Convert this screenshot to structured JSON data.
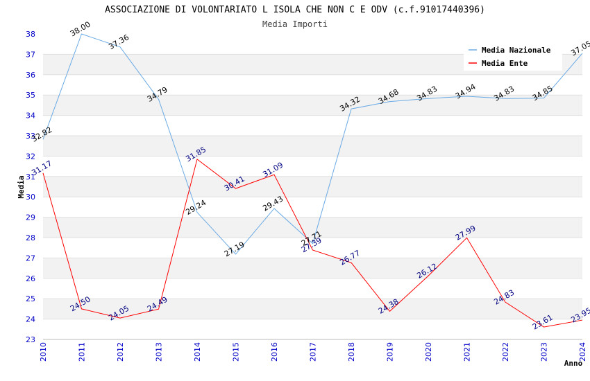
{
  "chart_data": {
    "type": "line",
    "title": "ASSOCIAZIONE DI VOLONTARIATO L ISOLA CHE NON C E ODV (c.f.91017440396)",
    "subtitle": "Media Importi",
    "xlabel": "Anno",
    "ylabel": "Media",
    "ylim": [
      23,
      38
    ],
    "yticks": [
      23,
      24,
      25,
      26,
      27,
      28,
      29,
      30,
      31,
      32,
      33,
      34,
      35,
      36,
      37,
      38
    ],
    "categories": [
      "2010",
      "2011",
      "2012",
      "2013",
      "2014",
      "2015",
      "2016",
      "2017",
      "2018",
      "2019",
      "2020",
      "2021",
      "2022",
      "2023",
      "2024"
    ],
    "grid": "horizontal alternating bands",
    "legend": "top-right",
    "series": [
      {
        "name": "Media Nazionale",
        "color": "#6aaae4",
        "label_color": "#000000",
        "values": [
          32.82,
          38.0,
          37.36,
          34.79,
          29.24,
          27.19,
          29.43,
          27.71,
          34.32,
          34.68,
          34.83,
          34.94,
          34.83,
          34.85,
          37.05
        ],
        "labels": [
          "32.82",
          "38.00",
          "37.36",
          "34.79",
          "29.24",
          "27.19",
          "29.43",
          "27.71",
          "34.32",
          "34.68",
          "34.83",
          "34.94",
          "34.83",
          "34.85",
          "37.05"
        ]
      },
      {
        "name": "Media Ente",
        "color": "#ff0000",
        "label_color": "#000080",
        "values": [
          31.17,
          24.5,
          24.05,
          24.49,
          31.85,
          30.41,
          31.09,
          27.39,
          26.77,
          24.38,
          26.12,
          27.99,
          24.83,
          23.61,
          23.95
        ],
        "labels": [
          "31.17",
          "24.50",
          "24.05",
          "24.49",
          "31.85",
          "30.41",
          "31.09",
          "27.39",
          "26.77",
          "24.38",
          "26.12",
          "27.99",
          "24.83",
          "23.61",
          "23.95"
        ]
      }
    ]
  }
}
